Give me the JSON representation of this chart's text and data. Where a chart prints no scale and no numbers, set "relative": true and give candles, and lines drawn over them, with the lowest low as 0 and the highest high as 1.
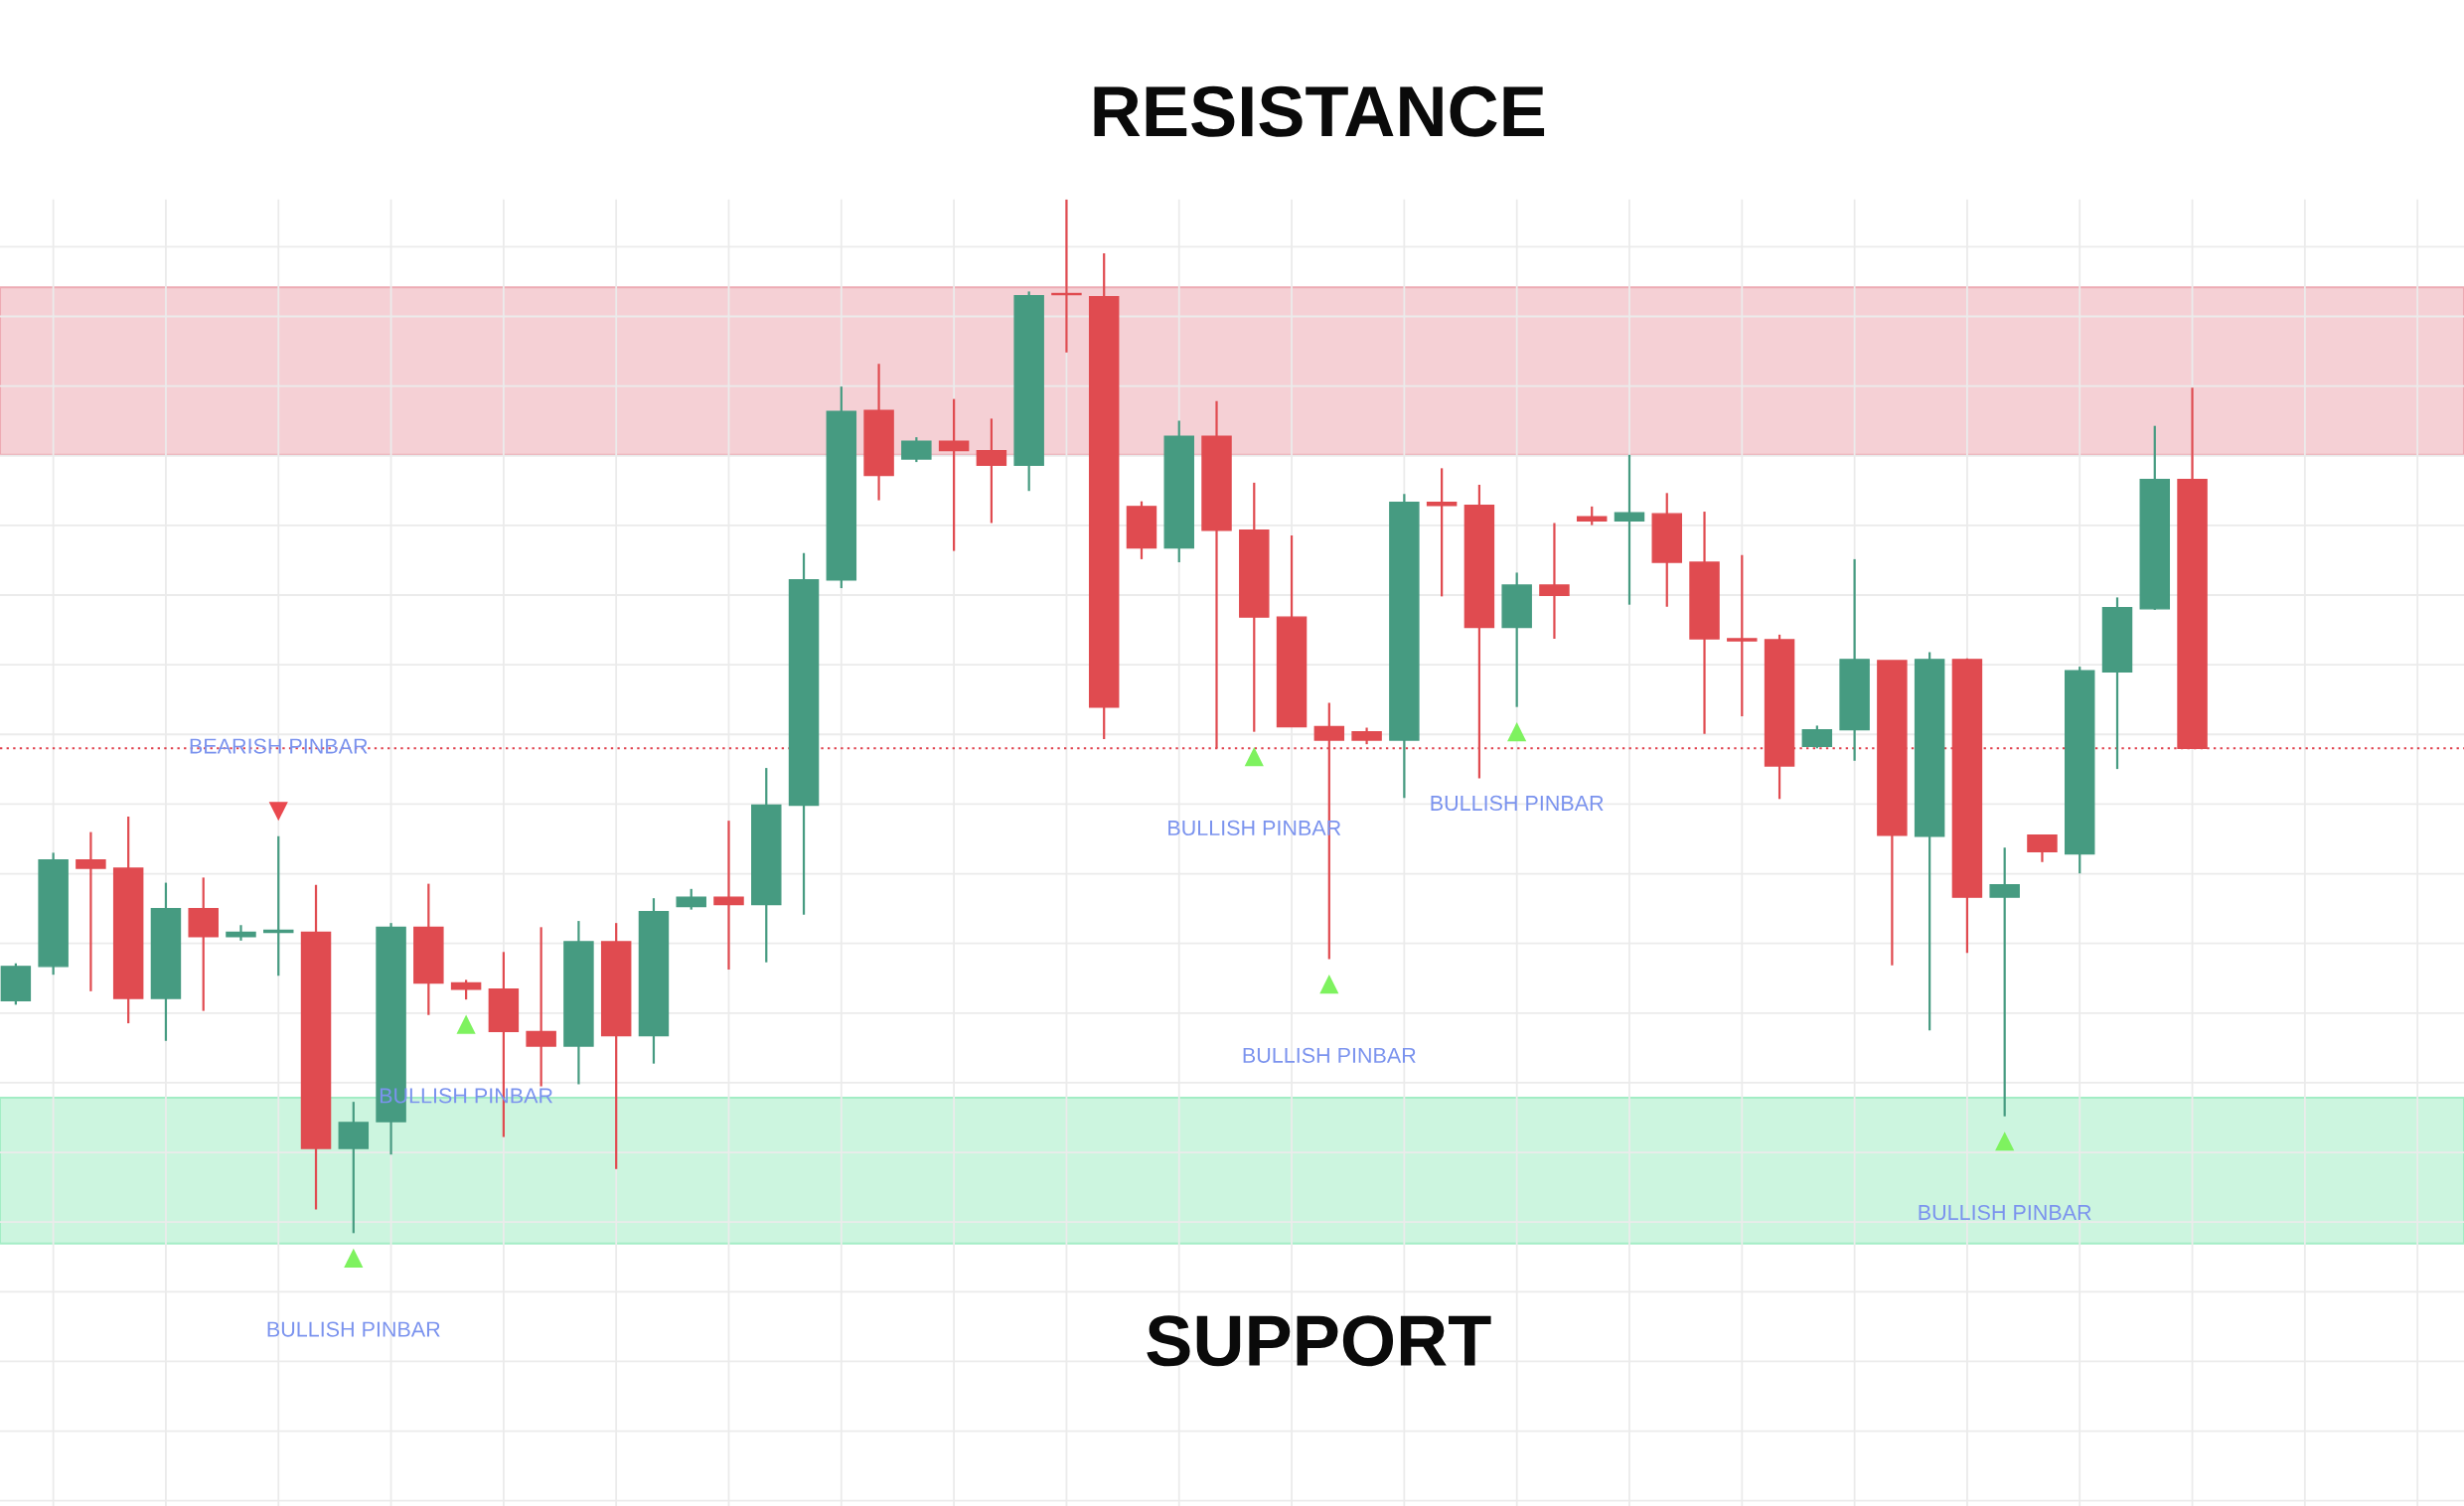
{
  "chart_data": {
    "type": "candlestick",
    "relative": true,
    "grid": true,
    "tick_labels": false,
    "categories": [
      null,
      null,
      null,
      null,
      null,
      null,
      null,
      null,
      null,
      null,
      null,
      null,
      null,
      null,
      null,
      null,
      null,
      null,
      null,
      null,
      null,
      null,
      null,
      null,
      null,
      null,
      null,
      null,
      null,
      null,
      null,
      null,
      null,
      null,
      null,
      null,
      null,
      null,
      null,
      null,
      null,
      null,
      null,
      null,
      null,
      null,
      null,
      null,
      null,
      null,
      null,
      null,
      null,
      null,
      null,
      null,
      null,
      null,
      null
    ],
    "ohlc": [
      [
        0.225,
        0.261,
        0.221,
        0.258
      ],
      [
        0.258,
        0.368,
        0.25,
        0.361
      ],
      [
        0.361,
        0.388,
        0.234,
        0.353
      ],
      [
        0.353,
        0.403,
        0.203,
        0.227
      ],
      [
        0.227,
        0.339,
        0.186,
        0.314
      ],
      [
        0.314,
        0.344,
        0.215,
        0.287
      ],
      [
        0.287,
        0.298,
        0.283,
        0.291
      ],
      [
        0.291,
        0.384,
        0.249,
        0.293
      ],
      [
        0.291,
        0.337,
        0.023,
        0.082
      ],
      [
        0.082,
        0.127,
        0,
        0.107
      ],
      [
        0.108,
        0.3,
        0.076,
        0.296
      ],
      [
        0.296,
        0.338,
        0.211,
        0.242
      ],
      [
        0.242,
        0.245,
        0.226,
        0.236
      ],
      [
        0.236,
        0.272,
        0.093,
        0.195
      ],
      [
        0.195,
        0.296,
        0.142,
        0.181
      ],
      [
        0.181,
        0.302,
        0.144,
        0.282
      ],
      [
        0.282,
        0.3,
        0.062,
        0.191
      ],
      [
        0.191,
        0.324,
        0.164,
        0.311
      ],
      [
        0.316,
        0.333,
        0.313,
        0.325
      ],
      [
        0.325,
        0.399,
        0.255,
        0.318
      ],
      [
        0.318,
        0.45,
        0.262,
        0.414
      ],
      [
        0.414,
        0.658,
        0.308,
        0.632
      ],
      [
        0.632,
        0.819,
        0.624,
        0.795
      ],
      [
        0.796,
        0.841,
        0.709,
        0.733
      ],
      [
        0.749,
        0.77,
        0.746,
        0.766
      ],
      [
        0.766,
        0.807,
        0.66,
        0.757
      ],
      [
        0.757,
        0.788,
        0.687,
        0.743
      ],
      [
        0.743,
        0.911,
        0.718,
        0.907
      ],
      [
        0.909,
        1.0,
        0.852,
        0.908
      ],
      [
        0.906,
        0.948,
        0.478,
        0.509
      ],
      [
        0.703,
        0.708,
        0.652,
        0.663
      ],
      [
        0.663,
        0.786,
        0.649,
        0.771
      ],
      [
        0.771,
        0.805,
        0.469,
        0.68
      ],
      [
        0.68,
        0.726,
        0.485,
        0.596
      ],
      [
        0.596,
        0.675,
        0.49,
        0.49
      ],
      [
        0.49,
        0.513,
        0.265,
        0.477
      ],
      [
        0.485,
        0.489,
        0.473,
        0.477
      ],
      [
        0.477,
        0.715,
        0.421,
        0.707
      ],
      [
        0.707,
        0.74,
        0.616,
        0.704
      ],
      [
        0.704,
        0.724,
        0.44,
        0.586
      ],
      [
        0.586,
        0.639,
        0.509,
        0.627
      ],
      [
        0.627,
        0.687,
        0.575,
        0.617
      ],
      [
        0.693,
        0.703,
        0.685,
        0.689
      ],
      [
        0.689,
        0.753,
        0.608,
        0.697
      ],
      [
        0.696,
        0.716,
        0.606,
        0.649
      ],
      [
        0.649,
        0.698,
        0.483,
        0.575
      ],
      [
        0.575,
        0.656,
        0.5,
        0.573
      ],
      [
        0.574,
        0.579,
        0.42,
        0.452
      ],
      [
        0.471,
        0.491,
        0.469,
        0.487
      ],
      [
        0.487,
        0.652,
        0.457,
        0.555
      ],
      [
        0.554,
        0.554,
        0.259,
        0.385
      ],
      [
        0.384,
        0.562,
        0.196,
        0.555
      ],
      [
        0.555,
        0.556,
        0.271,
        0.325
      ],
      [
        0.325,
        0.373,
        0.113,
        0.337
      ],
      [
        0.385,
        0.385,
        0.359,
        0.369
      ],
      [
        0.367,
        0.548,
        0.348,
        0.544
      ],
      [
        0.543,
        0.615,
        0.449,
        0.605
      ],
      [
        0.604,
        0.781,
        0.603,
        0.729
      ],
      [
        0.729,
        0.818,
        0.469,
        0.469
      ]
    ],
    "colors": [
      "#469b81",
      "#469b81",
      "#e04b50",
      "#e04b50",
      "#469b81",
      "#e04b50",
      "#469b81",
      "#469b81",
      "#e04b50",
      "#469b81",
      "#469b81",
      "#e04b50",
      "#e04b50",
      "#e04b50",
      "#e04b50",
      "#469b81",
      "#e04b50",
      "#469b81",
      "#469b81",
      "#e04b50",
      "#469b81",
      "#469b81",
      "#469b81",
      "#e04b50",
      "#469b81",
      "#e04b50",
      "#e04b50",
      "#469b81",
      "#e04b50",
      "#e04b50",
      "#e04b50",
      "#469b81",
      "#e04b50",
      "#e04b50",
      "#e04b50",
      "#e04b50",
      "#e04b50",
      "#469b81",
      "#e04b50",
      "#e04b50",
      "#469b81",
      "#e04b50",
      "#e04b50",
      "#469b81",
      "#e04b50",
      "#e04b50",
      "#e04b50",
      "#e04b50",
      "#469b81",
      "#469b81",
      "#e04b50",
      "#469b81",
      "#e04b50",
      "#469b81",
      "#e04b50",
      "#469b81",
      "#469b81",
      "#469b81",
      "#e04b50"
    ],
    "value_labels": [
      null,
      null,
      null,
      null,
      null,
      null,
      null,
      "BEARISH PINBAR",
      null,
      "BULLISH PINBAR",
      null,
      null,
      "BULLISH PINBAR",
      null,
      null,
      null,
      null,
      null,
      null,
      null,
      null,
      null,
      null,
      null,
      null,
      null,
      null,
      null,
      null,
      null,
      null,
      null,
      null,
      "BULLISH PINBAR",
      null,
      "BULLISH PINBAR",
      null,
      null,
      null,
      null,
      "BULLISH PINBAR",
      null,
      null,
      null,
      null,
      null,
      null,
      null,
      null,
      null,
      null,
      null,
      null,
      "BULLISH PINBAR",
      null,
      null,
      null,
      null,
      null
    ],
    "bands": [
      {
        "axis": "y",
        "from": 0.753,
        "to": 0.915,
        "label": "RESISTANCE",
        "color": "#f5d0d5"
      },
      {
        "axis": "y",
        "from": -0.01,
        "to": 0.131,
        "label": "SUPPORT",
        "color": "#ccf5df"
      }
    ],
    "ref_lines": [
      {
        "axis": "y",
        "value": 0.469,
        "color": "#e0424e",
        "line_style": "dotted"
      }
    ]
  }
}
